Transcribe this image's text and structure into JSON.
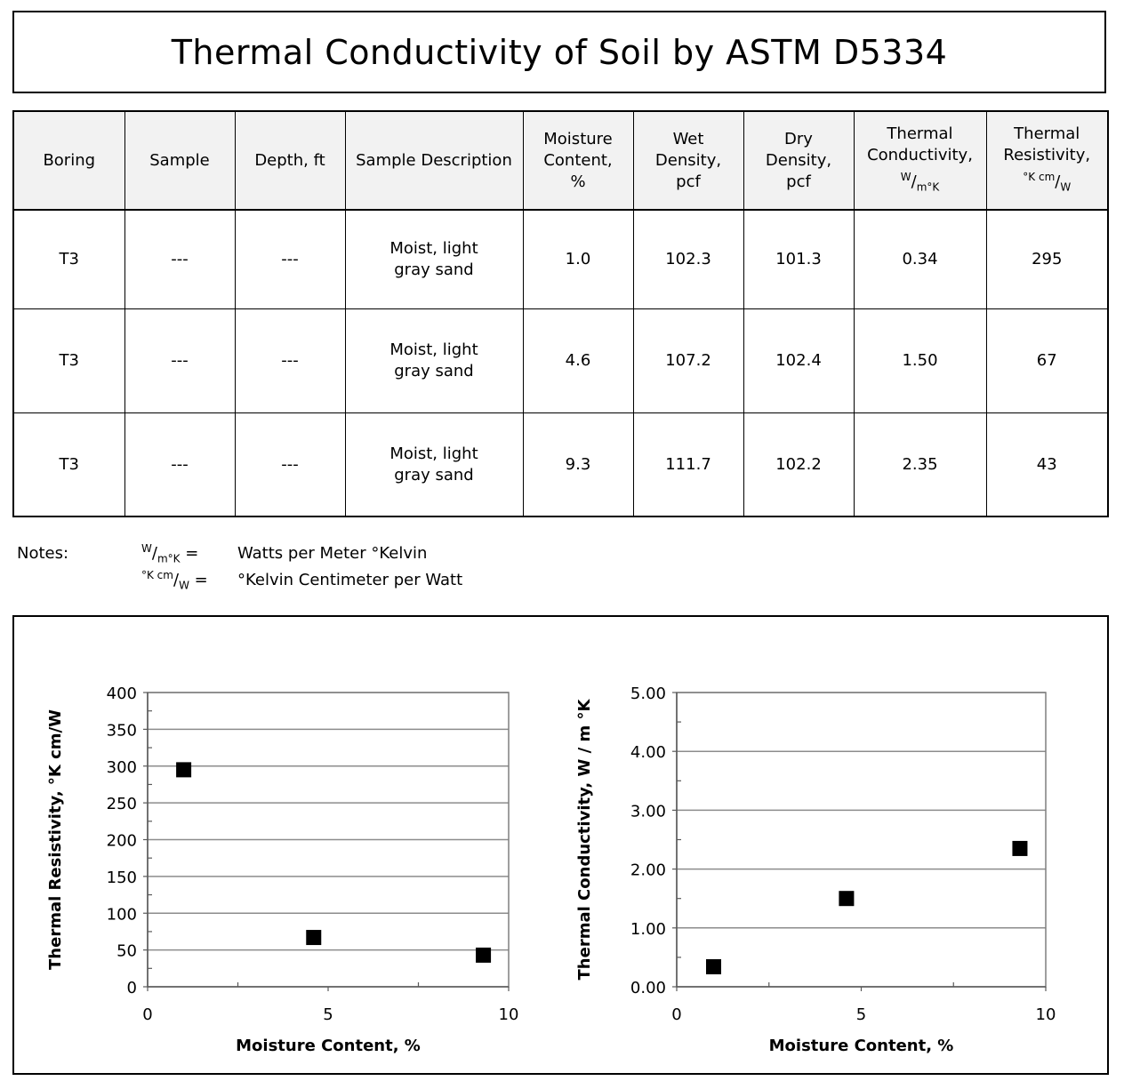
{
  "title": "Thermal Conductivity of Soil by ASTM D5334",
  "table": {
    "headers": {
      "boring": "Boring",
      "sample": "Sample",
      "depth": "Depth, ft",
      "description": "Sample Description",
      "moisture_line1": "Moisture",
      "moisture_line2": "Content,",
      "moisture_line3": "%",
      "wet_line1": "Wet",
      "wet_line2": "Density,",
      "wet_line3": "pcf",
      "dry_line1": "Dry",
      "dry_line2": "Density,",
      "dry_line3": "pcf",
      "cond_line1": "Thermal",
      "cond_line2": "Conductivity,",
      "cond_unit_num": "W",
      "cond_unit_den": "m°K",
      "res_line1": "Thermal",
      "res_line2": "Resistivity,",
      "res_unit_num": "°K cm",
      "res_unit_den": "W"
    },
    "rows": [
      {
        "boring": "T3",
        "sample": "---",
        "depth": "---",
        "description": "Moist, light gray sand",
        "moisture": "1.0",
        "wet": "102.3",
        "dry": "101.3",
        "conductivity": "0.34",
        "resistivity": "295"
      },
      {
        "boring": "T3",
        "sample": "---",
        "depth": "---",
        "description": "Moist, light gray sand",
        "moisture": "4.6",
        "wet": "107.2",
        "dry": "102.4",
        "conductivity": "1.50",
        "resistivity": "67"
      },
      {
        "boring": "T3",
        "sample": "---",
        "depth": "---",
        "description": "Moist, light gray sand",
        "moisture": "9.3",
        "wet": "111.7",
        "dry": "102.2",
        "conductivity": "2.35",
        "resistivity": "43"
      }
    ]
  },
  "notes": {
    "label": "Notes:",
    "items": [
      {
        "sym_num": "W",
        "sym_den": "m°K",
        "eq": " =",
        "text": "Watts per Meter °Kelvin"
      },
      {
        "sym_num": "°K cm",
        "sym_den": "W",
        "eq": " =",
        "text": "°Kelvin Centimeter per Watt"
      }
    ]
  },
  "chart_data": [
    {
      "type": "scatter",
      "xlabel": "Moisture Content, %",
      "ylabel": "Thermal Resistivity, °K cm/W",
      "xlim": [
        0,
        10
      ],
      "ylim": [
        0,
        400
      ],
      "x_ticks": [
        "0",
        "5",
        "10"
      ],
      "x_tick_values": [
        0,
        5,
        10
      ],
      "y_ticks": [
        "0",
        "50",
        "100",
        "150",
        "200",
        "250",
        "300",
        "350",
        "400"
      ],
      "y_tick_values": [
        0,
        50,
        100,
        150,
        200,
        250,
        300,
        350,
        400
      ],
      "grid": "horizontal",
      "x": [
        1.0,
        4.6,
        9.3
      ],
      "y": [
        295,
        67,
        43
      ],
      "marker_color": "#000000"
    },
    {
      "type": "scatter",
      "xlabel": "Moisture Content, %",
      "ylabel": "Thermal Conductivity, W / m °K",
      "xlim": [
        0,
        10
      ],
      "ylim": [
        0,
        5
      ],
      "x_ticks": [
        "0",
        "5",
        "10"
      ],
      "x_tick_values": [
        0,
        5,
        10
      ],
      "y_ticks": [
        "0.00",
        "1.00",
        "2.00",
        "3.00",
        "4.00",
        "5.00"
      ],
      "y_tick_values": [
        0,
        1,
        2,
        3,
        4,
        5
      ],
      "grid": "horizontal",
      "x": [
        1.0,
        4.6,
        9.3
      ],
      "y": [
        0.34,
        1.5,
        2.35
      ],
      "marker_color": "#000000"
    }
  ]
}
